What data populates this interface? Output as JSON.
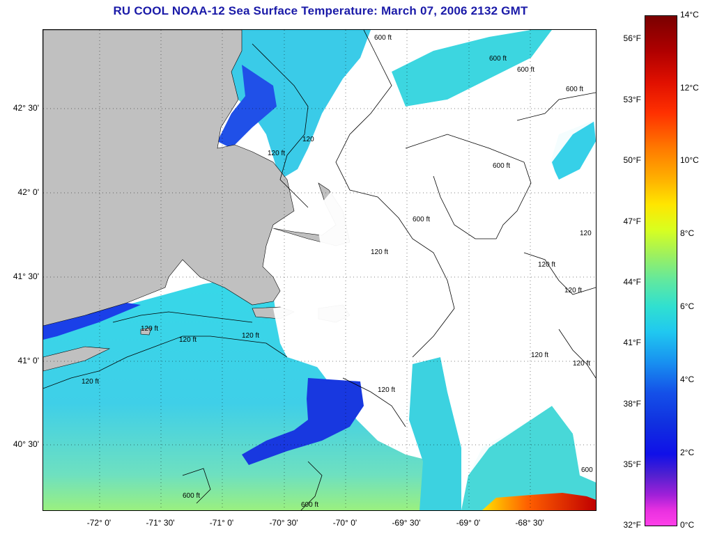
{
  "title": "RU COOL  NOAA-12  Sea Surface Temperature:  March 07, 2006 2132 GMT",
  "longitude_labels": [
    "-72° 0'",
    "-71° 30'",
    "-71° 0'",
    "-70° 30'",
    "-70° 0'",
    "-69° 30'",
    "-69° 0'",
    "-68° 30'"
  ],
  "latitude_labels": [
    "42° 30'",
    "42° 0'",
    "41° 30'",
    "41° 0'",
    "40° 30'"
  ],
  "colorbar": {
    "celsius_labels": [
      "14°C",
      "12°C",
      "10°C",
      "8°C",
      "6°C",
      "4°C",
      "2°C",
      "0°C"
    ],
    "fahrenheit_labels": [
      "56°F",
      "53°F",
      "50°F",
      "47°F",
      "44°F",
      "41°F",
      "38°F",
      "35°F",
      "32°F"
    ],
    "range_celsius": [
      0,
      14
    ]
  },
  "contours": {
    "label_120": "120 ft",
    "label_600": "600 ft",
    "label_120_short": "120",
    "label_600_short": "600"
  },
  "colors": {
    "title": "#1a1aa8",
    "land": "#c0c0c0",
    "cloud_mask": "#ffffff",
    "water_cool": "#2fd4e0",
    "water_cold": "#1530e0",
    "water_warm": "#ff2000"
  }
}
